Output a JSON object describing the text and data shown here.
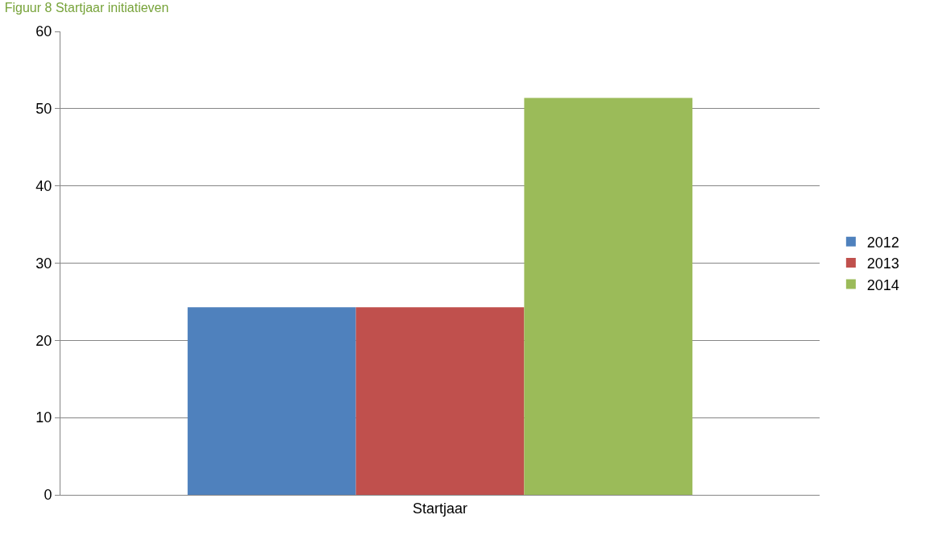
{
  "chart_data": {
    "type": "bar",
    "title": "Figuur 8 Startjaar initiatieven",
    "categories": [
      "Startjaar"
    ],
    "series": [
      {
        "name": "2012",
        "color": "#4f81bd",
        "values": [
          24.3
        ]
      },
      {
        "name": "2013",
        "color": "#c0504d",
        "values": [
          24.3
        ]
      },
      {
        "name": "2014",
        "color": "#9bbb59",
        "values": [
          51.4
        ]
      }
    ],
    "ylim": [
      0,
      60
    ],
    "yticks": [
      0,
      10,
      20,
      30,
      40,
      50,
      60
    ],
    "grid": "y",
    "legend": "right"
  }
}
